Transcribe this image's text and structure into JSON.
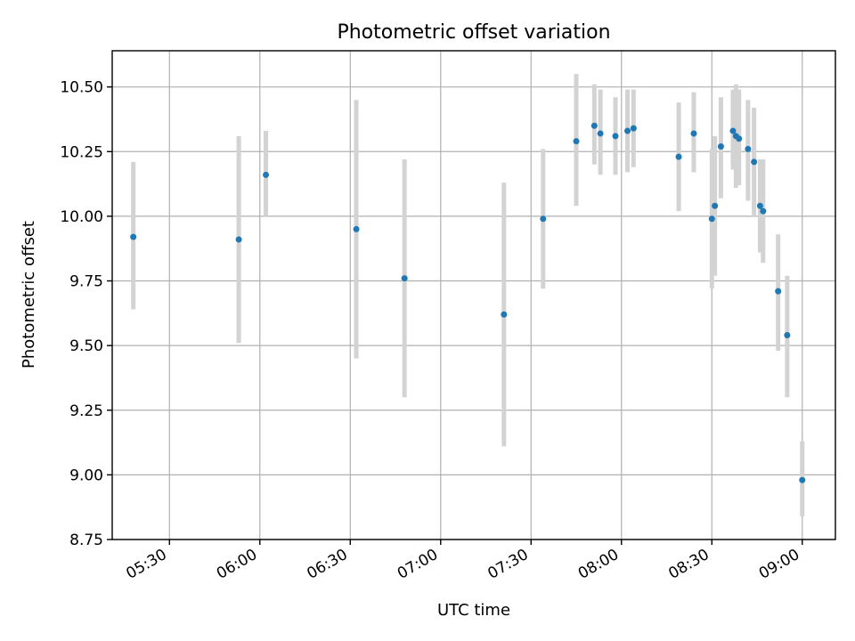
{
  "chart_data": {
    "type": "scatter",
    "title": "Photometric offset variation",
    "xlabel": "UTC time",
    "ylabel": "Photometric offset",
    "x_tick_labels": [
      "05:30",
      "06:00",
      "06:30",
      "07:00",
      "07:30",
      "08:00",
      "08:30",
      "09:00"
    ],
    "y_tick_labels": [
      "8.75",
      "9.00",
      "9.25",
      "9.50",
      "9.75",
      "10.00",
      "10.25",
      "10.50"
    ],
    "xlim": [
      "05:11",
      "09:11"
    ],
    "ylim": [
      8.75,
      10.64
    ],
    "grid": true,
    "colors": {
      "points": "#1f77b4",
      "error_bars": "#d3d3d3",
      "grid": "#b0b0b0"
    },
    "points": [
      {
        "x": "05:18",
        "y": 9.92,
        "ylo": 9.64,
        "yhi": 10.21
      },
      {
        "x": "05:53",
        "y": 9.91,
        "ylo": 9.51,
        "yhi": 10.31
      },
      {
        "x": "06:02",
        "y": 10.16,
        "ylo": 10.0,
        "yhi": 10.33
      },
      {
        "x": "06:32",
        "y": 9.95,
        "ylo": 9.45,
        "yhi": 10.45
      },
      {
        "x": "06:48",
        "y": 9.76,
        "ylo": 9.3,
        "yhi": 10.22
      },
      {
        "x": "07:21",
        "y": 9.62,
        "ylo": 9.11,
        "yhi": 10.13
      },
      {
        "x": "07:34",
        "y": 9.99,
        "ylo": 9.72,
        "yhi": 10.26
      },
      {
        "x": "07:45",
        "y": 10.29,
        "ylo": 10.04,
        "yhi": 10.55
      },
      {
        "x": "07:51",
        "y": 10.35,
        "ylo": 10.2,
        "yhi": 10.51
      },
      {
        "x": "07:53",
        "y": 10.32,
        "ylo": 10.16,
        "yhi": 10.49
      },
      {
        "x": "07:58",
        "y": 10.31,
        "ylo": 10.16,
        "yhi": 10.46
      },
      {
        "x": "08:02",
        "y": 10.33,
        "ylo": 10.17,
        "yhi": 10.49
      },
      {
        "x": "08:04",
        "y": 10.34,
        "ylo": 10.19,
        "yhi": 10.49
      },
      {
        "x": "08:19",
        "y": 10.23,
        "ylo": 10.02,
        "yhi": 10.44
      },
      {
        "x": "08:24",
        "y": 10.32,
        "ylo": 10.17,
        "yhi": 10.48
      },
      {
        "x": "08:30",
        "y": 9.99,
        "ylo": 9.72,
        "yhi": 10.26
      },
      {
        "x": "08:31",
        "y": 10.04,
        "ylo": 9.77,
        "yhi": 10.31
      },
      {
        "x": "08:33",
        "y": 10.27,
        "ylo": 10.07,
        "yhi": 10.46
      },
      {
        "x": "08:37",
        "y": 10.33,
        "ylo": 10.18,
        "yhi": 10.49
      },
      {
        "x": "08:38",
        "y": 10.31,
        "ylo": 10.11,
        "yhi": 10.51
      },
      {
        "x": "08:39",
        "y": 10.3,
        "ylo": 10.12,
        "yhi": 10.49
      },
      {
        "x": "08:42",
        "y": 10.26,
        "ylo": 10.06,
        "yhi": 10.45
      },
      {
        "x": "08:44",
        "y": 10.21,
        "ylo": 10.0,
        "yhi": 10.42
      },
      {
        "x": "08:46",
        "y": 10.04,
        "ylo": 9.86,
        "yhi": 10.22
      },
      {
        "x": "08:47",
        "y": 10.02,
        "ylo": 9.82,
        "yhi": 10.22
      },
      {
        "x": "08:52",
        "y": 9.71,
        "ylo": 9.48,
        "yhi": 9.93
      },
      {
        "x": "08:55",
        "y": 9.54,
        "ylo": 9.3,
        "yhi": 9.77
      },
      {
        "x": "09:00",
        "y": 8.98,
        "ylo": 8.84,
        "yhi": 9.13
      }
    ]
  }
}
